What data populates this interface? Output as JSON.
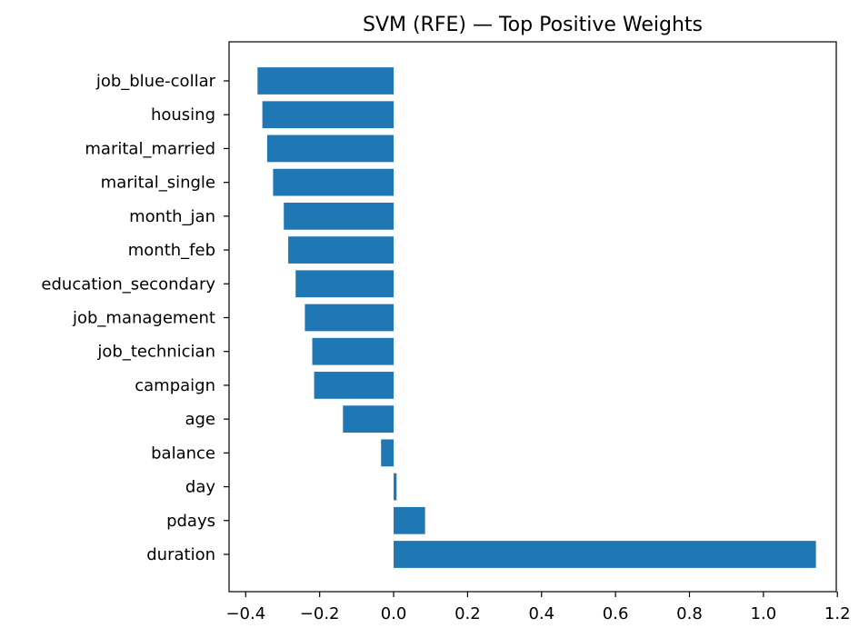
{
  "chart_data": {
    "type": "bar",
    "orientation": "horizontal",
    "title": "SVM (RFE) — Top Positive Weights",
    "xlabel": "",
    "ylabel": "",
    "categories": [
      "job_blue-collar",
      "housing",
      "marital_married",
      "marital_single",
      "month_jan",
      "month_feb",
      "education_secondary",
      "job_management",
      "job_technician",
      "campaign",
      "age",
      "balance",
      "day",
      "pdays",
      "duration"
    ],
    "values": [
      -0.368,
      -0.355,
      -0.342,
      -0.326,
      -0.297,
      -0.285,
      -0.265,
      -0.24,
      -0.22,
      -0.215,
      -0.137,
      -0.034,
      0.008,
      0.085,
      1.142
    ],
    "xlim": [
      -0.445,
      1.197
    ],
    "xticks": [
      -0.4,
      -0.2,
      0.0,
      0.2,
      0.4,
      0.6,
      0.8,
      1.0,
      1.2
    ],
    "xtick_labels": [
      "−0.4",
      "−0.2",
      "0.0",
      "0.2",
      "0.4",
      "0.6",
      "0.8",
      "1.0",
      "1.2"
    ],
    "bar_color": "#1f77b4",
    "grid": false,
    "legend": "none"
  }
}
